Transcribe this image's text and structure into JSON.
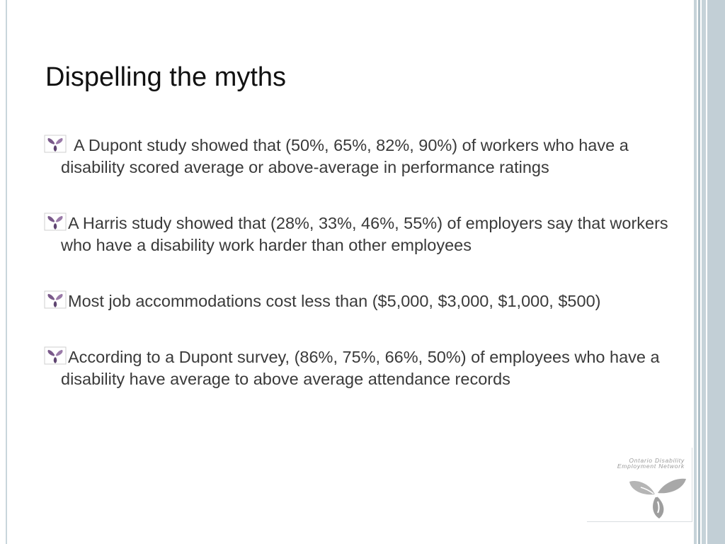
{
  "slide": {
    "title": "Dispelling the myths",
    "bullets": [
      {
        "icon": "trillium-bullet-icon",
        "text": "A Dupont study showed that (50%, 65%, 82%, 90%) of workers who have a disability scored average or above-average in performance ratings"
      },
      {
        "icon": "trillium-bullet-icon",
        "text": "A Harris study showed that (28%, 33%, 46%, 55%) of employers say that workers who have a disability work harder than other employees"
      },
      {
        "icon": "trillium-bullet-icon",
        "text": "Most job accommodations cost less than ($5,000, $3,000, $1,000, $500)"
      },
      {
        "icon": "trillium-bullet-icon",
        "text": "According to a Dupont survey, (86%, 75%, 66%, 50%) of employees who have a disability have average to above average attendance records"
      }
    ],
    "logo": {
      "line1": "Ontario Disability",
      "line2": "Employment Network",
      "icon": "trillium-logo-icon"
    }
  },
  "colors": {
    "title": "#111111",
    "body_text": "#3a3a3a",
    "accent_stripes": "#c2cfd6",
    "bullet_purple": "#7a5a8a"
  }
}
